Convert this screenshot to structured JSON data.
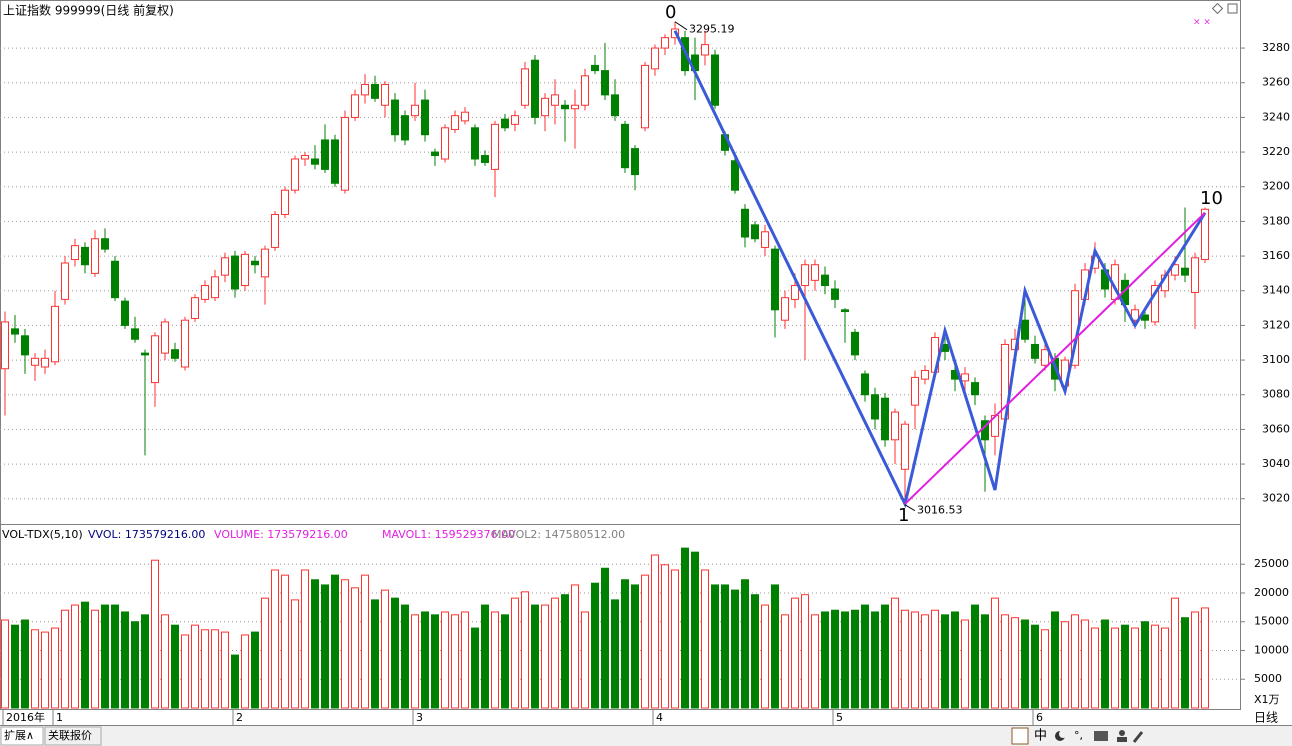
{
  "chart_data": {
    "type": "candlestick",
    "title": "上证指数 999999(日线 前复权)",
    "categories": [
      "2016年",
      null,
      null,
      null,
      null,
      "1",
      null,
      null,
      null,
      null,
      null,
      null,
      null,
      null,
      null,
      null,
      null,
      null,
      null,
      null,
      null,
      null,
      null,
      "2",
      null,
      null,
      null,
      null,
      null,
      null,
      null,
      null,
      null,
      null,
      null,
      null,
      null,
      null,
      null,
      null,
      null,
      "3",
      null,
      null,
      null,
      null,
      null,
      null,
      null,
      null,
      null,
      null,
      null,
      null,
      null,
      null,
      null,
      null,
      null,
      null,
      null,
      null,
      null,
      null,
      null,
      "4",
      null,
      null,
      null,
      null,
      null,
      null,
      null,
      null,
      null,
      null,
      null,
      null,
      null,
      null,
      null,
      null,
      null,
      "5",
      null,
      null,
      null,
      null,
      null,
      null,
      null,
      null,
      null,
      null,
      null,
      null,
      null,
      null,
      null,
      null,
      null,
      null,
      null,
      "6",
      null,
      null,
      null,
      null,
      null,
      null,
      null,
      null,
      null,
      null,
      null,
      null,
      null,
      null,
      null,
      null,
      null
    ],
    "ohlc": [
      [
        3095,
        3128,
        3068,
        3122
      ],
      [
        3118,
        3126,
        3110,
        3115
      ],
      [
        3114,
        3118,
        3092,
        3103
      ],
      [
        3097,
        3104,
        3088,
        3101
      ],
      [
        3096,
        3106,
        3092,
        3101
      ],
      [
        3099,
        3140,
        3097,
        3131
      ],
      [
        3135,
        3160,
        3132,
        3156
      ],
      [
        3158,
        3170,
        3154,
        3166
      ],
      [
        3165,
        3168,
        3150,
        3155
      ],
      [
        3150,
        3175,
        3148,
        3170
      ],
      [
        3170,
        3176,
        3162,
        3164
      ],
      [
        3157,
        3160,
        3134,
        3136
      ],
      [
        3134,
        3136,
        3118,
        3120
      ],
      [
        3118,
        3125,
        3110,
        3112
      ],
      [
        3104,
        3106,
        3045,
        3103
      ],
      [
        3087,
        3116,
        3073,
        3114
      ],
      [
        3104,
        3124,
        3100,
        3122
      ],
      [
        3106,
        3110,
        3099,
        3101
      ],
      [
        3096,
        3125,
        3094,
        3123
      ],
      [
        3124,
        3138,
        3122,
        3136
      ],
      [
        3135,
        3146,
        3133,
        3143
      ],
      [
        3136,
        3152,
        3134,
        3148
      ],
      [
        3149,
        3162,
        3145,
        3159
      ],
      [
        3160,
        3163,
        3136,
        3141
      ],
      [
        3143,
        3163,
        3140,
        3161
      ],
      [
        3157,
        3160,
        3150,
        3155
      ],
      [
        3148,
        3166,
        3132,
        3164
      ],
      [
        3165,
        3186,
        3163,
        3184
      ],
      [
        3184,
        3200,
        3182,
        3198
      ],
      [
        3198,
        3218,
        3196,
        3216
      ],
      [
        3216,
        3220,
        3212,
        3218
      ],
      [
        3216,
        3224,
        3210,
        3213
      ],
      [
        3227,
        3236,
        3208,
        3210
      ],
      [
        3227,
        3230,
        3200,
        3202
      ],
      [
        3198,
        3244,
        3196,
        3240
      ],
      [
        3240,
        3256,
        3238,
        3253
      ],
      [
        3253,
        3265,
        3248,
        3259
      ],
      [
        3259,
        3264,
        3249,
        3251
      ],
      [
        3247,
        3261,
        3240,
        3259
      ],
      [
        3250,
        3254,
        3226,
        3230
      ],
      [
        3241,
        3244,
        3224,
        3227
      ],
      [
        3241,
        3260,
        3238,
        3247
      ],
      [
        3250,
        3256,
        3226,
        3230
      ],
      [
        3220,
        3222,
        3212,
        3218
      ],
      [
        3216,
        3236,
        3214,
        3234
      ],
      [
        3233,
        3244,
        3231,
        3241
      ],
      [
        3238,
        3246,
        3236,
        3243
      ],
      [
        3234,
        3236,
        3212,
        3216
      ],
      [
        3218,
        3221,
        3212,
        3214
      ],
      [
        3210,
        3238,
        3194,
        3236
      ],
      [
        3239,
        3242,
        3232,
        3234
      ],
      [
        3236,
        3244,
        3232,
        3241
      ],
      [
        3247,
        3272,
        3245,
        3268
      ],
      [
        3273,
        3276,
        3236,
        3240
      ],
      [
        3241,
        3254,
        3232,
        3251
      ],
      [
        3247,
        3262,
        3236,
        3253
      ],
      [
        3247,
        3250,
        3226,
        3245
      ],
      [
        3245,
        3256,
        3222,
        3247
      ],
      [
        3247,
        3268,
        3244,
        3264
      ],
      [
        3270,
        3276,
        3265,
        3267
      ],
      [
        3267,
        3283,
        3250,
        3253
      ],
      [
        3253,
        3262,
        3238,
        3241
      ],
      [
        3236,
        3238,
        3208,
        3211
      ],
      [
        3222,
        3224,
        3198,
        3207
      ],
      [
        3234,
        3272,
        3232,
        3270
      ],
      [
        3268,
        3282,
        3264,
        3280
      ],
      [
        3280,
        3288,
        3276,
        3286
      ],
      [
        3286,
        3295.19,
        3282,
        3291
      ],
      [
        3286,
        3290,
        3264,
        3267
      ],
      [
        3276,
        3286,
        3250,
        3267
      ],
      [
        3276,
        3290,
        3270,
        3282
      ],
      [
        3276,
        3279,
        3245,
        3247
      ],
      [
        3230,
        3232,
        3218,
        3221
      ],
      [
        3215,
        3220,
        3196,
        3198
      ],
      [
        3187,
        3190,
        3165,
        3171
      ],
      [
        3178,
        3180,
        3168,
        3170
      ],
      [
        3165,
        3178,
        3160,
        3174
      ],
      [
        3164,
        3166,
        3113,
        3129
      ],
      [
        3123,
        3140,
        3118,
        3136
      ],
      [
        3135,
        3150,
        3130,
        3143
      ],
      [
        3143,
        3158,
        3100,
        3155
      ],
      [
        3146,
        3158,
        3140,
        3155
      ],
      [
        3149,
        3154,
        3138,
        3143
      ],
      [
        3141,
        3146,
        3130,
        3135
      ],
      [
        3129,
        3130,
        3110,
        3128
      ],
      [
        3116,
        3118,
        3100,
        3103
      ],
      [
        3092,
        3094,
        3076,
        3080
      ],
      [
        3080,
        3084,
        3060,
        3066
      ],
      [
        3078,
        3081,
        3050,
        3054
      ],
      [
        3054,
        3072,
        3040,
        3070
      ],
      [
        3037,
        3065,
        3016.53,
        3063
      ],
      [
        3074,
        3094,
        3060,
        3090
      ],
      [
        3089,
        3097,
        3086,
        3094
      ],
      [
        3093,
        3116,
        3090,
        3113
      ],
      [
        3109,
        3113,
        3100,
        3105
      ],
      [
        3094,
        3098,
        3082,
        3089
      ],
      [
        3088,
        3096,
        3080,
        3092
      ],
      [
        3087,
        3090,
        3074,
        3080
      ],
      [
        3065,
        3068,
        3024,
        3054
      ],
      [
        3056,
        3075,
        3045,
        3068
      ],
      [
        3066,
        3112,
        3064,
        3109
      ],
      [
        3106,
        3118,
        3100,
        3112
      ],
      [
        3123,
        3135,
        3110,
        3112
      ],
      [
        3109,
        3114,
        3098,
        3101
      ],
      [
        3097,
        3110,
        3094,
        3106
      ],
      [
        3101,
        3104,
        3082,
        3089
      ],
      [
        3085,
        3102,
        3080,
        3100
      ],
      [
        3097,
        3144,
        3095,
        3140
      ],
      [
        3135,
        3156,
        3132,
        3152
      ],
      [
        3153,
        3168,
        3150,
        3160
      ],
      [
        3152,
        3156,
        3136,
        3141
      ],
      [
        3135,
        3158,
        3132,
        3155
      ],
      [
        3146,
        3150,
        3122,
        3132
      ],
      [
        3123,
        3132,
        3118,
        3129
      ],
      [
        3126,
        3128,
        3118,
        3123
      ],
      [
        3122,
        3146,
        3120,
        3143
      ],
      [
        3140,
        3152,
        3136,
        3149
      ],
      [
        3149,
        3160,
        3146,
        3155
      ],
      [
        3153,
        3188,
        3145,
        3149
      ],
      [
        3139,
        3162,
        3118,
        3159
      ],
      [
        3158,
        3188,
        3156,
        3187
      ]
    ],
    "up_color": "#ff3232",
    "down_color": "#008000",
    "ylim": [
      3006,
      3306
    ],
    "yticks": [
      3020,
      3040,
      3060,
      3080,
      3100,
      3120,
      3140,
      3160,
      3180,
      3200,
      3220,
      3240,
      3260,
      3280
    ],
    "grid": true,
    "waves": [
      {
        "color": "#3a5ad8",
        "points": [
          [
            67,
            3290
          ],
          [
            73,
            3218
          ],
          [
            90,
            3017
          ],
          [
            94,
            3117
          ],
          [
            99,
            3025
          ],
          [
            102,
            3140
          ],
          [
            106,
            3082
          ],
          [
            109,
            3163
          ],
          [
            113,
            3120
          ],
          [
            120,
            3185
          ]
        ]
      },
      {
        "color": "#e020e0",
        "points": [
          [
            90,
            3017
          ],
          [
            120,
            3185
          ]
        ]
      }
    ],
    "wave_labels": [
      "0",
      "1",
      "10"
    ],
    "volume": {
      "header": [
        "VOL-TDX(5,10)",
        "VVOL: 173579216.00",
        "VOLUME: 173579216.00",
        "MAVOL1: 159529376.00",
        "MAVOL2: 147580512.00"
      ],
      "values": [
        15300,
        14400,
        15300,
        13600,
        13200,
        13900,
        17000,
        17900,
        18400,
        17000,
        17900,
        17900,
        16700,
        15000,
        16200,
        25700,
        16200,
        14400,
        12700,
        14400,
        13600,
        13600,
        13200,
        9200,
        12700,
        13200,
        19100,
        24000,
        23100,
        18800,
        24000,
        22300,
        21400,
        23100,
        22300,
        20900,
        23100,
        18800,
        20500,
        19100,
        17900,
        16200,
        16700,
        16200,
        16700,
        16200,
        16700,
        13900,
        17900,
        16700,
        16200,
        19100,
        20200,
        17900,
        17900,
        19100,
        19700,
        21400,
        16700,
        21700,
        24300,
        18800,
        22300,
        21400,
        23100,
        26600,
        24900,
        24000,
        27800,
        27100,
        24000,
        21400,
        21400,
        20500,
        22300,
        19700,
        17900,
        21400,
        16200,
        19100,
        19700,
        16200,
        16700,
        17000,
        16700,
        17000,
        17900,
        16700,
        17900,
        19100,
        17000,
        16700,
        16200,
        17000,
        16200,
        16700,
        15300,
        17900,
        16200,
        19100,
        16200,
        15700,
        15300,
        14400,
        13600,
        16700,
        15000,
        16200,
        15300,
        13900,
        15300,
        13900,
        14400,
        13900,
        15000,
        14400,
        13900,
        19100,
        15700,
        16700,
        17400
      ],
      "ylim": [
        0,
        31300
      ],
      "yticks": [
        5000,
        10000,
        15000,
        20000,
        25000
      ],
      "unit_label": "X1万"
    },
    "period_label": "日线",
    "tabs": [
      "扩展∧",
      "关联报价"
    ],
    "toolbar_char": "中"
  }
}
